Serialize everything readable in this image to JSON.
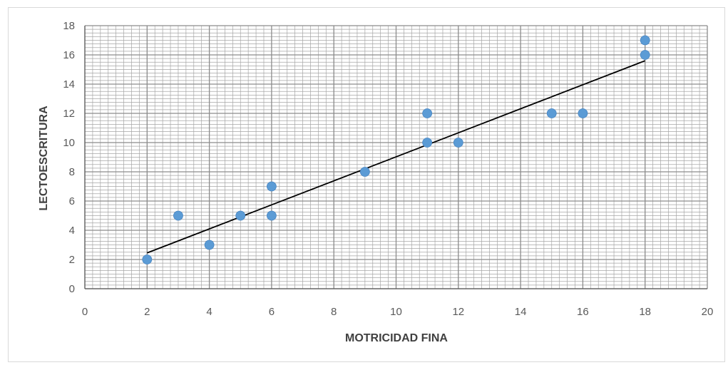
{
  "chart_data": {
    "type": "scatter",
    "title": "",
    "xlabel": "MOTRICIDAD FINA",
    "ylabel": "LECTOESCRITURA",
    "xlim": [
      0,
      20
    ],
    "ylim": [
      0,
      18
    ],
    "x_ticks": [
      0,
      2,
      4,
      6,
      8,
      10,
      12,
      14,
      16,
      18,
      20
    ],
    "y_ticks": [
      0,
      2,
      4,
      6,
      8,
      10,
      12,
      14,
      16,
      18
    ],
    "x_minor_step": 0.25,
    "y_minor_step": 0.25,
    "grid": true,
    "legend": "none",
    "series": [
      {
        "points": [
          {
            "x": 2,
            "y": 2
          },
          {
            "x": 3,
            "y": 5
          },
          {
            "x": 4,
            "y": 3
          },
          {
            "x": 5,
            "y": 5
          },
          {
            "x": 6,
            "y": 7
          },
          {
            "x": 6,
            "y": 5
          },
          {
            "x": 9,
            "y": 8
          },
          {
            "x": 11,
            "y": 12
          },
          {
            "x": 11,
            "y": 10
          },
          {
            "x": 12,
            "y": 10
          },
          {
            "x": 15,
            "y": 12
          },
          {
            "x": 16,
            "y": 12
          },
          {
            "x": 18,
            "y": 17
          },
          {
            "x": 18,
            "y": 16
          }
        ],
        "color": "#5b9bd5"
      }
    ],
    "trendline": {
      "type": "linear",
      "from": {
        "x": 2,
        "y": 2.45
      },
      "to": {
        "x": 18,
        "y": 15.6
      },
      "color": "#000000"
    },
    "gridline_color": "#a6a6a6"
  }
}
